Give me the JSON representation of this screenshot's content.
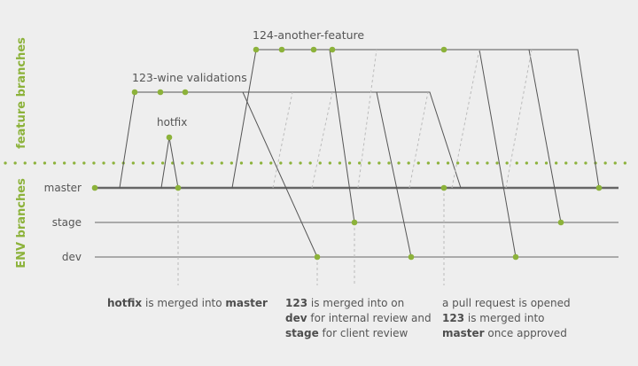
{
  "colors": {
    "background": "#eeeeee",
    "accent": "#8cb23a",
    "line": "#555555",
    "dashed": "#bbbbbb",
    "text": "#555555"
  },
  "sections": {
    "feature": "feature branches",
    "env": "ENV branches"
  },
  "env_branches": {
    "master": "master",
    "stage": "stage",
    "dev": "dev"
  },
  "feature_branches": {
    "another": "124-another-feature",
    "wine": "123-wine validations",
    "hotfix": "hotfix"
  },
  "notes": {
    "hotfix": {
      "l1_b": "hotfix",
      "l1_r": " is merged into ",
      "l1_b2": "master"
    },
    "merge123": {
      "l1_b": "123",
      "l1_r": " is merged into on",
      "l2_b": "dev",
      "l2_r": " for internal review and",
      "l3_b": "stage",
      "l3_r": " for client review"
    },
    "pr": {
      "l1": "a pull request is opened",
      "l2_b": "123",
      "l2_r": " is merged into",
      "l3_b": "master",
      "l3_r": " once approved"
    }
  }
}
